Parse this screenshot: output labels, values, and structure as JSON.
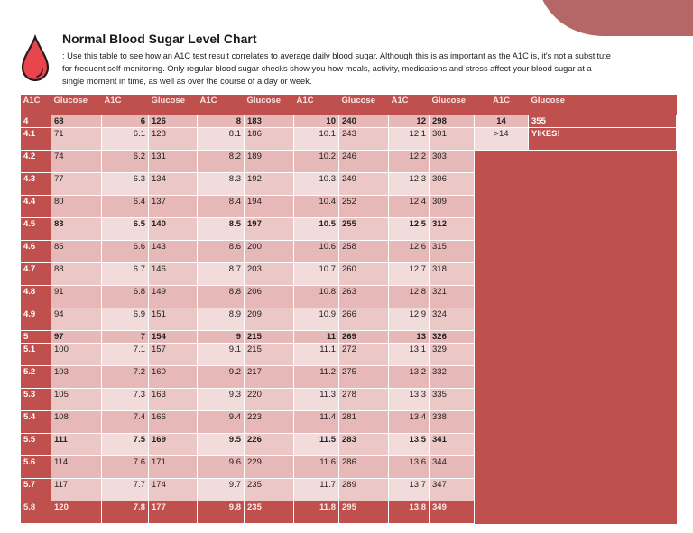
{
  "document": {
    "title": "Normal Blood Sugar Level Chart",
    "description": ": Use this table to see how an A1C test result correlates to average daily blood sugar. Although this is as important as the A1C is, it's not a substitute for frequent self-monitoring. Only regular blood sugar checks show you how meals, activity, medications and stress affect your blood sugar at a single moment in time, as well as over the course of a day or week.",
    "icon": "blood-drop-icon",
    "colors": {
      "header": "#c0504d",
      "band_dark": "#e6b8b7",
      "band_light": "#f2dcdb",
      "icon": "#e8454d"
    }
  },
  "table": {
    "headers": [
      "A1C",
      "Glucose",
      "A1C",
      "Glucose",
      "A1C",
      "Glucose",
      "A1C",
      "Glucose",
      "A1C",
      "Glucose",
      "A1C",
      "Glucose"
    ],
    "rows": [
      [
        "4",
        "68",
        "6",
        "126",
        "8",
        "183",
        "10",
        "240",
        "12",
        "298"
      ],
      [
        "4.1",
        "71",
        "6.1",
        "128",
        "8.1",
        "186",
        "10.1",
        "243",
        "12.1",
        "301"
      ],
      [
        "4.2",
        "74",
        "6.2",
        "131",
        "8.2",
        "189",
        "10.2",
        "246",
        "12.2",
        "303"
      ],
      [
        "4.3",
        "77",
        "6.3",
        "134",
        "8.3",
        "192",
        "10.3",
        "249",
        "12.3",
        "306"
      ],
      [
        "4.4",
        "80",
        "6.4",
        "137",
        "8.4",
        "194",
        "10.4",
        "252",
        "12.4",
        "309"
      ],
      [
        "4.5",
        "83",
        "6.5",
        "140",
        "8.5",
        "197",
        "10.5",
        "255",
        "12.5",
        "312"
      ],
      [
        "4.6",
        "85",
        "6.6",
        "143",
        "8.6",
        "200",
        "10.6",
        "258",
        "12.6",
        "315"
      ],
      [
        "4.7",
        "88",
        "6.7",
        "146",
        "8.7",
        "203",
        "10.7",
        "260",
        "12.7",
        "318"
      ],
      [
        "4.8",
        "91",
        "6.8",
        "149",
        "8.8",
        "206",
        "10.8",
        "263",
        "12.8",
        "321"
      ],
      [
        "4.9",
        "94",
        "6.9",
        "151",
        "8.9",
        "209",
        "10.9",
        "266",
        "12.9",
        "324"
      ],
      [
        "5",
        "97",
        "7",
        "154",
        "9",
        "215",
        "11",
        "269",
        "13",
        "326"
      ],
      [
        "5.1",
        "100",
        "7.1",
        "157",
        "9.1",
        "215",
        "11.1",
        "272",
        "13.1",
        "329"
      ],
      [
        "5.2",
        "103",
        "7.2",
        "160",
        "9.2",
        "217",
        "11.2",
        "275",
        "13.2",
        "332"
      ],
      [
        "5.3",
        "105",
        "7.3",
        "163",
        "9.3",
        "220",
        "11.3",
        "278",
        "13.3",
        "335"
      ],
      [
        "5.4",
        "108",
        "7.4",
        "166",
        "9.4",
        "223",
        "11.4",
        "281",
        "13.4",
        "338"
      ],
      [
        "5.5",
        "111",
        "7.5",
        "169",
        "9.5",
        "226",
        "11.5",
        "283",
        "13.5",
        "341"
      ],
      [
        "5.6",
        "114",
        "7.6",
        "171",
        "9.6",
        "229",
        "11.6",
        "286",
        "13.6",
        "344"
      ],
      [
        "5.7",
        "117",
        "7.7",
        "174",
        "9.7",
        "235",
        "11.7",
        "289",
        "13.7",
        "347"
      ],
      [
        "5.8",
        "120",
        "7.8",
        "177",
        "9.8",
        "235",
        "11.8",
        "295",
        "13.8",
        "349"
      ]
    ],
    "bold_rows": [
      0,
      5,
      10,
      15
    ],
    "extra": [
      {
        "a1c": "14",
        "glucose": "355"
      },
      {
        "a1c": ">14",
        "glucose": "YIKES!"
      }
    ]
  }
}
